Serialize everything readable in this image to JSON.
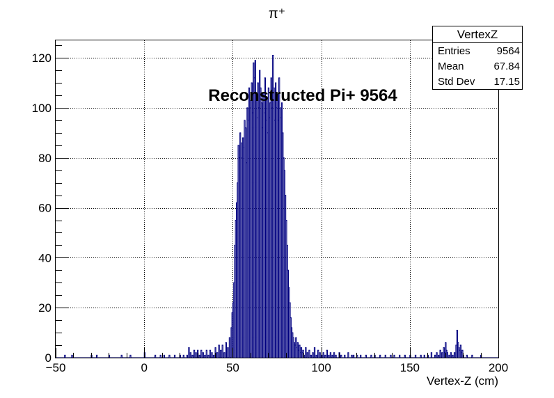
{
  "chart_data": {
    "type": "histogram",
    "title": "π⁺",
    "annotation": "Reconstructed Pi+ 9564",
    "xlabel": "Vertex-Z (cm)",
    "ylabel": "",
    "xlim": [
      -50,
      200
    ],
    "ylim": [
      0,
      127
    ],
    "grid": true,
    "x_ticks": [
      "−50",
      "0",
      "50",
      "100",
      "150",
      "200"
    ],
    "y_ticks": [
      "0",
      "20",
      "40",
      "60",
      "80",
      "100",
      "120"
    ],
    "line_color": "#000080",
    "bin_width": 0.5,
    "bins": [
      [
        -45,
        1
      ],
      [
        -41,
        1
      ],
      [
        -30,
        1
      ],
      [
        -27,
        1
      ],
      [
        -20,
        1
      ],
      [
        -13,
        1
      ],
      [
        -8,
        1
      ],
      [
        0,
        2
      ],
      [
        6,
        1
      ],
      [
        9,
        1
      ],
      [
        11,
        1
      ],
      [
        14,
        1
      ],
      [
        17,
        1
      ],
      [
        20,
        1
      ],
      [
        22,
        1
      ],
      [
        24,
        1
      ],
      [
        25,
        4
      ],
      [
        26,
        2
      ],
      [
        27,
        1
      ],
      [
        28,
        3
      ],
      [
        29,
        2
      ],
      [
        30,
        3
      ],
      [
        31,
        1
      ],
      [
        32,
        3
      ],
      [
        33,
        2
      ],
      [
        34,
        1
      ],
      [
        35,
        3
      ],
      [
        36,
        1
      ],
      [
        37,
        3
      ],
      [
        38,
        2
      ],
      [
        39,
        1
      ],
      [
        40,
        4
      ],
      [
        41,
        2
      ],
      [
        42,
        5
      ],
      [
        43,
        3
      ],
      [
        44,
        5
      ],
      [
        45,
        2
      ],
      [
        46,
        6
      ],
      [
        47,
        4
      ],
      [
        48,
        8
      ],
      [
        49,
        12
      ],
      [
        49.5,
        18
      ],
      [
        50,
        22
      ],
      [
        50.5,
        30
      ],
      [
        51,
        45
      ],
      [
        51.5,
        55
      ],
      [
        52,
        62
      ],
      [
        52.5,
        70
      ],
      [
        53,
        85
      ],
      [
        53.5,
        80
      ],
      [
        54,
        90
      ],
      [
        54.5,
        86
      ],
      [
        55,
        80
      ],
      [
        55.5,
        88
      ],
      [
        56,
        84
      ],
      [
        56.5,
        95
      ],
      [
        57,
        92
      ],
      [
        57.5,
        78
      ],
      [
        58,
        100
      ],
      [
        58.5,
        95
      ],
      [
        59,
        108
      ],
      [
        59.5,
        100
      ],
      [
        60,
        103
      ],
      [
        60.5,
        110
      ],
      [
        61,
        98
      ],
      [
        61.5,
        118
      ],
      [
        62,
        112
      ],
      [
        62.5,
        119
      ],
      [
        63,
        105
      ],
      [
        63.5,
        96
      ],
      [
        64,
        110
      ],
      [
        64.5,
        100
      ],
      [
        65,
        115
      ],
      [
        65.5,
        108
      ],
      [
        66,
        102
      ],
      [
        66.5,
        92
      ],
      [
        67,
        106
      ],
      [
        67.5,
        98
      ],
      [
        68,
        112
      ],
      [
        68.5,
        95
      ],
      [
        69,
        104
      ],
      [
        69.5,
        90
      ],
      [
        70,
        108
      ],
      [
        70.5,
        96
      ],
      [
        71,
        102
      ],
      [
        71.5,
        112
      ],
      [
        72,
        100
      ],
      [
        72.5,
        121
      ],
      [
        73,
        108
      ],
      [
        73.5,
        95
      ],
      [
        74,
        110
      ],
      [
        74.5,
        100
      ],
      [
        75,
        105
      ],
      [
        75.5,
        95
      ],
      [
        76,
        112
      ],
      [
        76.5,
        100
      ],
      [
        77,
        96
      ],
      [
        77.5,
        102
      ],
      [
        78,
        90
      ],
      [
        78.5,
        80
      ],
      [
        79,
        75
      ],
      [
        79.5,
        65
      ],
      [
        80,
        55
      ],
      [
        80.5,
        45
      ],
      [
        81,
        35
      ],
      [
        81.5,
        28
      ],
      [
        82,
        22
      ],
      [
        82.5,
        16
      ],
      [
        83,
        12
      ],
      [
        83.5,
        10
      ],
      [
        84,
        8
      ],
      [
        84.5,
        6
      ],
      [
        85,
        5
      ],
      [
        85.5,
        8
      ],
      [
        86,
        4
      ],
      [
        86.5,
        6
      ],
      [
        87,
        3
      ],
      [
        87.5,
        5
      ],
      [
        88,
        2
      ],
      [
        88.5,
        4
      ],
      [
        89,
        2
      ],
      [
        89.5,
        3
      ],
      [
        90,
        1
      ],
      [
        91,
        4
      ],
      [
        92,
        2
      ],
      [
        93,
        3
      ],
      [
        94,
        1
      ],
      [
        95,
        2
      ],
      [
        96,
        4
      ],
      [
        97,
        1
      ],
      [
        98,
        3
      ],
      [
        99,
        2
      ],
      [
        100,
        1
      ],
      [
        101,
        2
      ],
      [
        102,
        1
      ],
      [
        103,
        3
      ],
      [
        104,
        1
      ],
      [
        105,
        2
      ],
      [
        106,
        1
      ],
      [
        107,
        2
      ],
      [
        108,
        1
      ],
      [
        110,
        2
      ],
      [
        111,
        1
      ],
      [
        113,
        1
      ],
      [
        115,
        2
      ],
      [
        117,
        1
      ],
      [
        118,
        1
      ],
      [
        120,
        1
      ],
      [
        122,
        1
      ],
      [
        125,
        1
      ],
      [
        128,
        1
      ],
      [
        130,
        1
      ],
      [
        133,
        1
      ],
      [
        136,
        1
      ],
      [
        139,
        1
      ],
      [
        141,
        1
      ],
      [
        144,
        1
      ],
      [
        147,
        1
      ],
      [
        150,
        1
      ],
      [
        153,
        1
      ],
      [
        156,
        1
      ],
      [
        158,
        1
      ],
      [
        160,
        1
      ],
      [
        162,
        2
      ],
      [
        164,
        1
      ],
      [
        165,
        2
      ],
      [
        166,
        1
      ],
      [
        167,
        3
      ],
      [
        168,
        2
      ],
      [
        169,
        4
      ],
      [
        169.5,
        2
      ],
      [
        170,
        6
      ],
      [
        170.5,
        3
      ],
      [
        171,
        2
      ],
      [
        172,
        1
      ],
      [
        173,
        2
      ],
      [
        174,
        1
      ],
      [
        175,
        2
      ],
      [
        176,
        5
      ],
      [
        176.5,
        11
      ],
      [
        177,
        6
      ],
      [
        177.5,
        4
      ],
      [
        178,
        3
      ],
      [
        178.5,
        5
      ],
      [
        179,
        2
      ],
      [
        179.5,
        3
      ],
      [
        180,
        1
      ],
      [
        182,
        1
      ],
      [
        185,
        1
      ],
      [
        190,
        1
      ]
    ]
  },
  "stats": {
    "title": "VertexZ",
    "rows": [
      {
        "key": "Entries",
        "value": "9564"
      },
      {
        "key": "Mean",
        "value": "67.84"
      },
      {
        "key": "Std Dev",
        "value": "17.15"
      }
    ]
  }
}
